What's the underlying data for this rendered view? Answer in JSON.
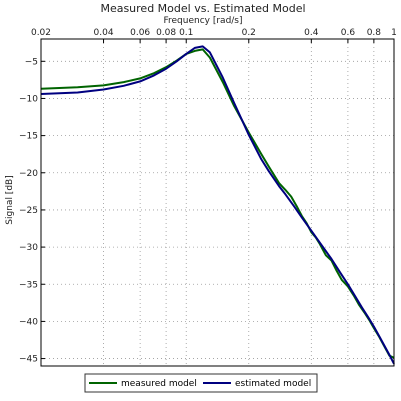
{
  "chart_data": {
    "type": "line",
    "title": "Measured Model vs. Estimated Model",
    "xlabel": "Frequency [rad/s]",
    "ylabel": "Signal [dB]",
    "xscale": "log",
    "xaxis_position": "top",
    "xlim": [
      0.02,
      1.0
    ],
    "ylim": [
      -46,
      -2
    ],
    "xticks": [
      0.02,
      0.04,
      0.06,
      0.08,
      0.1,
      0.2,
      0.4,
      0.6,
      0.8,
      1
    ],
    "xtick_labels": [
      "0.02",
      "0.04",
      "0.06",
      "0.08",
      "0.1",
      "0.2",
      "0.4",
      "0.6",
      "0.8",
      "1"
    ],
    "yticks": [
      -5,
      -10,
      -15,
      -20,
      -25,
      -30,
      -35,
      -40,
      -45
    ],
    "ytick_labels": [
      "−5",
      "−10",
      "−15",
      "−20",
      "−25",
      "−30",
      "−35",
      "−40",
      "−45"
    ],
    "grid": true,
    "grid_style": "dotted",
    "legend_position": "bottom-center",
    "series": [
      {
        "name": "measured model",
        "color": "#006400",
        "points": [
          [
            0.02,
            -8.7
          ],
          [
            0.03,
            -8.5
          ],
          [
            0.04,
            -8.25
          ],
          [
            0.05,
            -7.8
          ],
          [
            0.06,
            -7.3
          ],
          [
            0.07,
            -6.6
          ],
          [
            0.08,
            -5.8
          ],
          [
            0.09,
            -4.9
          ],
          [
            0.1,
            -4.0
          ],
          [
            0.11,
            -3.6
          ],
          [
            0.12,
            -3.4
          ],
          [
            0.13,
            -4.5
          ],
          [
            0.15,
            -7.8
          ],
          [
            0.17,
            -11.0
          ],
          [
            0.2,
            -14.6
          ],
          [
            0.23,
            -17.5
          ],
          [
            0.25,
            -19.2
          ],
          [
            0.28,
            -21.4
          ],
          [
            0.3,
            -22.3
          ],
          [
            0.32,
            -23.2
          ],
          [
            0.34,
            -24.5
          ],
          [
            0.36,
            -25.8
          ],
          [
            0.38,
            -26.8
          ],
          [
            0.4,
            -28.0
          ],
          [
            0.42,
            -28.7
          ],
          [
            0.44,
            -29.6
          ],
          [
            0.47,
            -31.1
          ],
          [
            0.5,
            -31.8
          ],
          [
            0.53,
            -33.2
          ],
          [
            0.56,
            -34.4
          ],
          [
            0.6,
            -35.3
          ],
          [
            0.64,
            -36.5
          ],
          [
            0.68,
            -37.8
          ],
          [
            0.72,
            -38.8
          ],
          [
            0.76,
            -39.8
          ],
          [
            0.8,
            -40.9
          ],
          [
            0.85,
            -42.1
          ],
          [
            0.9,
            -43.4
          ],
          [
            0.95,
            -44.6
          ],
          [
            1.0,
            -44.9
          ]
        ]
      },
      {
        "name": "estimated model",
        "color": "#000080",
        "points": [
          [
            0.02,
            -9.4
          ],
          [
            0.03,
            -9.2
          ],
          [
            0.04,
            -8.8
          ],
          [
            0.05,
            -8.3
          ],
          [
            0.06,
            -7.7
          ],
          [
            0.07,
            -6.9
          ],
          [
            0.08,
            -6.0
          ],
          [
            0.09,
            -5.0
          ],
          [
            0.1,
            -4.0
          ],
          [
            0.11,
            -3.2
          ],
          [
            0.12,
            -3.0
          ],
          [
            0.13,
            -3.8
          ],
          [
            0.15,
            -7.2
          ],
          [
            0.17,
            -10.6
          ],
          [
            0.2,
            -14.9
          ],
          [
            0.23,
            -18.2
          ],
          [
            0.25,
            -19.8
          ],
          [
            0.28,
            -21.8
          ],
          [
            0.3,
            -22.9
          ],
          [
            0.33,
            -24.5
          ],
          [
            0.36,
            -26.0
          ],
          [
            0.4,
            -27.8
          ],
          [
            0.45,
            -29.8
          ],
          [
            0.5,
            -31.6
          ],
          [
            0.55,
            -33.4
          ],
          [
            0.6,
            -35.0
          ],
          [
            0.65,
            -36.6
          ],
          [
            0.7,
            -38.1
          ],
          [
            0.75,
            -39.4
          ],
          [
            0.8,
            -40.7
          ],
          [
            0.85,
            -42.0
          ],
          [
            0.9,
            -43.3
          ],
          [
            0.95,
            -44.5
          ],
          [
            1.0,
            -45.7
          ]
        ]
      }
    ]
  }
}
